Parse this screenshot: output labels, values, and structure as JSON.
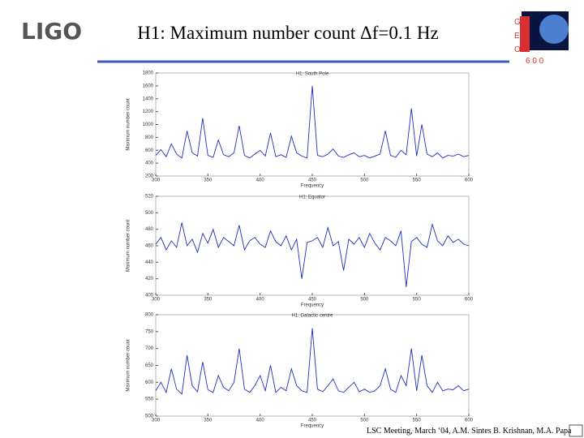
{
  "header": {
    "logo_left": "LIGO",
    "title": "H1: Maximum number count Δf=0.1 Hz",
    "logo_right_letters": [
      "G",
      "E",
      "O"
    ],
    "logo_right_number": "6 0 0"
  },
  "footer": "LSC Meeting, March ‘04, A.M. Sintes B. Krishnan, M.A. Papa",
  "chart_data": [
    {
      "type": "line",
      "title": "H1: South Pole",
      "x_label": "Frequency",
      "y_label": "Maximum number count",
      "color": "#1f2fbf",
      "x": [
        300,
        305,
        310,
        315,
        320,
        325,
        330,
        335,
        340,
        345,
        350,
        355,
        360,
        365,
        370,
        375,
        380,
        385,
        390,
        395,
        400,
        405,
        410,
        415,
        420,
        425,
        430,
        435,
        440,
        445,
        450,
        455,
        460,
        465,
        470,
        475,
        480,
        485,
        490,
        495,
        500,
        505,
        510,
        515,
        520,
        525,
        530,
        535,
        540,
        545,
        550,
        555,
        560,
        565,
        570,
        575,
        580,
        585,
        590,
        595,
        600
      ],
      "values": [
        520,
        610,
        500,
        700,
        540,
        480,
        900,
        560,
        510,
        1100,
        520,
        490,
        760,
        530,
        500,
        560,
        980,
        520,
        480,
        540,
        600,
        510,
        870,
        500,
        530,
        490,
        820,
        560,
        510,
        480,
        1600,
        520,
        500,
        540,
        620,
        510,
        490,
        530,
        560,
        500,
        520,
        480,
        510,
        540,
        900,
        520,
        490,
        600,
        530,
        1250,
        510,
        1000,
        540,
        500,
        560,
        480,
        520,
        510,
        540,
        500,
        520
      ],
      "xlim": [
        300,
        600
      ],
      "xticks": [
        300,
        350,
        400,
        450,
        500,
        550,
        600
      ],
      "ylim": [
        200,
        1800
      ],
      "yticks": [
        200,
        400,
        600,
        800,
        1000,
        1200,
        1400,
        1600,
        1800
      ]
    },
    {
      "type": "line",
      "title": "H1: Equator",
      "x_label": "Frequency",
      "y_label": "Maximum number count",
      "color": "#1f2fbf",
      "x": [
        300,
        305,
        310,
        315,
        320,
        325,
        330,
        335,
        340,
        345,
        350,
        355,
        360,
        365,
        370,
        375,
        380,
        385,
        390,
        395,
        400,
        405,
        410,
        415,
        420,
        425,
        430,
        435,
        440,
        445,
        450,
        455,
        460,
        465,
        470,
        475,
        480,
        485,
        490,
        495,
        500,
        505,
        510,
        515,
        520,
        525,
        530,
        535,
        540,
        545,
        550,
        555,
        560,
        565,
        570,
        575,
        580,
        585,
        590,
        595,
        600
      ],
      "values": [
        462,
        470,
        455,
        466,
        458,
        488,
        460,
        468,
        452,
        475,
        463,
        480,
        458,
        470,
        465,
        460,
        485,
        455,
        466,
        470,
        462,
        458,
        478,
        465,
        460,
        472,
        455,
        468,
        420,
        464,
        466,
        470,
        458,
        482,
        460,
        465,
        430,
        468,
        462,
        470,
        458,
        475,
        463,
        455,
        470,
        466,
        460,
        478,
        410,
        465,
        470,
        462,
        458,
        486,
        466,
        460,
        472,
        464,
        468,
        462,
        460
      ],
      "xlim": [
        300,
        600
      ],
      "xticks": [
        300,
        350,
        400,
        450,
        500,
        550,
        600
      ],
      "ylim": [
        400,
        520
      ],
      "yticks": [
        400,
        420,
        440,
        460,
        480,
        500,
        520
      ]
    },
    {
      "type": "line",
      "title": "H1: Galactic centre",
      "x_label": "Frequency",
      "y_label": "Maximum number count",
      "color": "#1f2fbf",
      "x": [
        300,
        305,
        310,
        315,
        320,
        325,
        330,
        335,
        340,
        345,
        350,
        355,
        360,
        365,
        370,
        375,
        380,
        385,
        390,
        395,
        400,
        405,
        410,
        415,
        420,
        425,
        430,
        435,
        440,
        445,
        450,
        455,
        460,
        465,
        470,
        475,
        480,
        485,
        490,
        495,
        500,
        505,
        510,
        515,
        520,
        525,
        530,
        535,
        540,
        545,
        550,
        555,
        560,
        565,
        570,
        575,
        580,
        585,
        590,
        595,
        600
      ],
      "values": [
        575,
        600,
        570,
        640,
        580,
        565,
        680,
        590,
        572,
        660,
        578,
        570,
        620,
        585,
        575,
        600,
        700,
        580,
        570,
        590,
        620,
        575,
        650,
        570,
        585,
        575,
        640,
        590,
        575,
        570,
        760,
        580,
        572,
        590,
        610,
        575,
        570,
        585,
        600,
        572,
        580,
        570,
        575,
        590,
        640,
        580,
        570,
        620,
        590,
        700,
        575,
        680,
        590,
        570,
        600,
        575,
        580,
        578,
        590,
        575,
        580
      ],
      "xlim": [
        300,
        600
      ],
      "xticks": [
        300,
        350,
        400,
        450,
        500,
        550,
        600
      ],
      "ylim": [
        500,
        800
      ],
      "yticks": [
        500,
        550,
        600,
        650,
        700,
        750,
        800
      ]
    }
  ]
}
